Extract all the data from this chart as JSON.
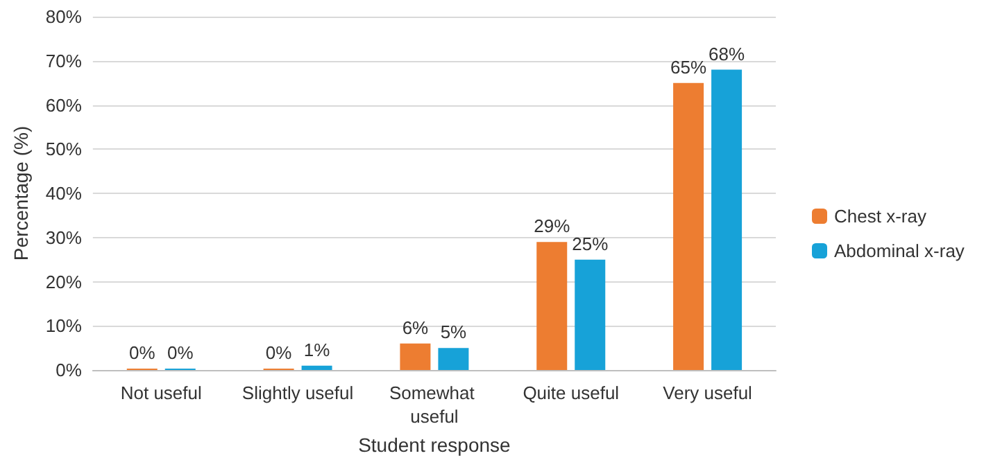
{
  "chart_data": {
    "type": "bar",
    "xlabel": "Student response",
    "ylabel": "Percentage (%)",
    "categories": [
      "Not useful",
      "Slightly useful",
      "Somewhat useful",
      "Quite useful",
      "Very useful"
    ],
    "series": [
      {
        "name": "Chest x-ray",
        "color": "#ed7d31",
        "values": [
          0,
          0,
          6,
          29,
          65
        ],
        "value_labels": [
          "0%",
          "0%",
          "6%",
          "29%",
          "65%"
        ]
      },
      {
        "name": "Abdominal x-ray",
        "color": "#17a2d8",
        "values": [
          0,
          1,
          5,
          25,
          68
        ],
        "value_labels": [
          "0%",
          "1%",
          "5%",
          "25%",
          "68%"
        ]
      }
    ],
    "ylim": [
      0,
      80
    ],
    "yticks": [
      {
        "value": 0,
        "label": "0%"
      },
      {
        "value": 10,
        "label": "10%"
      },
      {
        "value": 20,
        "label": "20%"
      },
      {
        "value": 30,
        "label": "30%"
      },
      {
        "value": 40,
        "label": "40%"
      },
      {
        "value": 50,
        "label": "50%"
      },
      {
        "value": 60,
        "label": "60%"
      },
      {
        "value": 70,
        "label": "70%"
      },
      {
        "value": 80,
        "label": "80%"
      }
    ],
    "grid": "y",
    "legend": "right"
  }
}
